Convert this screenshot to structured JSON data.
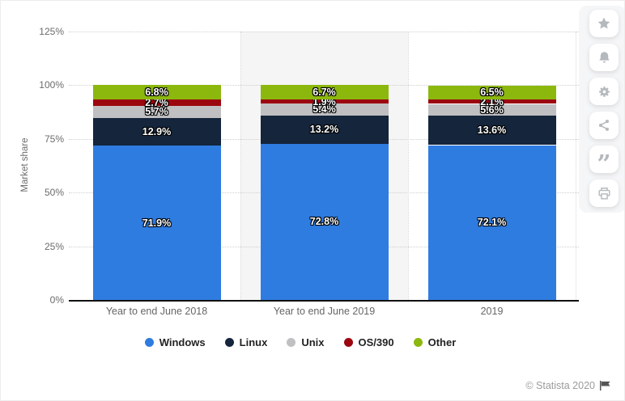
{
  "chart_data": {
    "type": "bar",
    "stacked": true,
    "categories": [
      "Year to end June 2018",
      "Year to end June 2019",
      "2019"
    ],
    "series": [
      {
        "name": "Windows",
        "color": "#2f7ce0",
        "values": [
          71.9,
          72.8,
          72.1
        ]
      },
      {
        "name": "Linux",
        "color": "#14253c",
        "values": [
          12.9,
          13.2,
          13.6
        ]
      },
      {
        "name": "Unix",
        "color": "#c0c0c2",
        "values": [
          5.7,
          5.4,
          5.6
        ]
      },
      {
        "name": "OS/390",
        "color": "#9c070f",
        "values": [
          2.7,
          1.9,
          2.1
        ]
      },
      {
        "name": "Other",
        "color": "#8cb80e",
        "values": [
          6.8,
          6.7,
          6.5
        ]
      }
    ],
    "xlabel": "",
    "ylabel": "Market share",
    "ylim": [
      0,
      125
    ],
    "yticks": [
      0,
      25,
      50,
      75,
      100,
      125
    ],
    "ytick_labels": [
      "0%",
      "25%",
      "50%",
      "75%",
      "100%",
      "125%"
    ],
    "grid": "horizontal-dotted",
    "legend_position": "bottom",
    "highlight_band_index": 1,
    "highlight_band_color": "#f5f5f5",
    "data_label_suffix": "%"
  },
  "sidebar": {
    "buttons": [
      {
        "name": "favorite",
        "icon": "star-icon"
      },
      {
        "name": "notifications",
        "icon": "bell-icon"
      },
      {
        "name": "settings",
        "icon": "gear-icon"
      },
      {
        "name": "share",
        "icon": "share-icon"
      },
      {
        "name": "cite",
        "icon": "quote-icon"
      },
      {
        "name": "print",
        "icon": "print-icon"
      }
    ],
    "icon_color": "#b5b9bd"
  },
  "footer": {
    "copyright": "© Statista 2020",
    "flag_icon": "flag-icon"
  }
}
